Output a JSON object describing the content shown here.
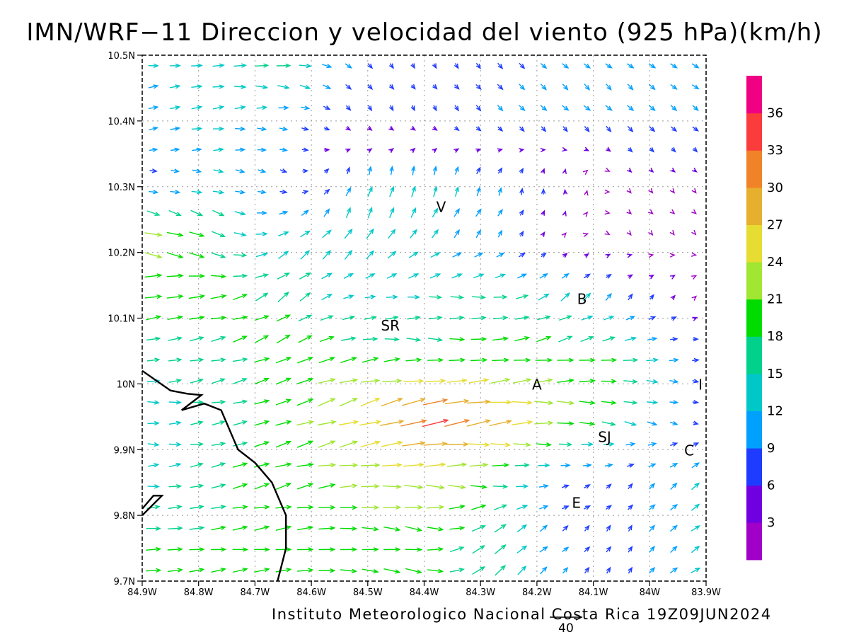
{
  "title": "IMN/WRF−11 Direccion y velocidad del viento (925 hPa)(km/h)",
  "footer": "Instituto Meteorologico Nacional Costa Rica  19Z09JUN2024",
  "map": {
    "lon_range": [
      -84.9,
      -83.9
    ],
    "lat_range": [
      9.7,
      10.5
    ],
    "x_tick_labels": [
      "84.9W",
      "84.8W",
      "84.7W",
      "84.6W",
      "84.5W",
      "84.4W",
      "84.3W",
      "84.2W",
      "84.1W",
      "84W",
      "83.9W"
    ],
    "y_tick_labels": [
      "9.7N",
      "9.8N",
      "9.9N",
      "10N",
      "10.1N",
      "10.2N",
      "10.3N",
      "10.4N",
      "10.5N"
    ],
    "grid": "dotted",
    "places": [
      {
        "label": "V",
        "lon": -84.37,
        "lat": 10.27
      },
      {
        "label": "B",
        "lon": -84.12,
        "lat": 10.13
      },
      {
        "label": "SR",
        "lon": -84.46,
        "lat": 10.09
      },
      {
        "label": "A",
        "lon": -84.2,
        "lat": 10.0
      },
      {
        "label": "I",
        "lon": -83.91,
        "lat": 10.0
      },
      {
        "label": "SJ",
        "lon": -84.08,
        "lat": 9.92
      },
      {
        "label": "C",
        "lon": -83.93,
        "lat": 9.9
      },
      {
        "label": "E",
        "lon": -84.13,
        "lat": 9.82
      }
    ],
    "coastline_lonlat": [
      [
        -84.9,
        10.02
      ],
      [
        -84.85,
        9.99
      ],
      [
        -84.82,
        9.985
      ],
      [
        -84.795,
        9.983
      ],
      [
        -84.83,
        9.96
      ],
      [
        -84.79,
        9.97
      ],
      [
        -84.76,
        9.96
      ],
      [
        -84.74,
        9.92
      ],
      [
        -84.73,
        9.9
      ],
      [
        -84.7,
        9.88
      ],
      [
        -84.67,
        9.85
      ],
      [
        -84.645,
        9.8
      ],
      [
        -84.645,
        9.75
      ],
      [
        -84.66,
        9.7
      ]
    ],
    "land_tip_lonlat": [
      [
        -84.9,
        9.81
      ],
      [
        -84.88,
        9.83
      ],
      [
        -84.865,
        9.83
      ],
      [
        -84.9,
        9.8
      ]
    ]
  },
  "colorbar": {
    "colors": [
      "#a000c8",
      "#7000e0",
      "#1e3cff",
      "#00a0ff",
      "#00c8c8",
      "#00d28c",
      "#00dc00",
      "#a0e632",
      "#e6dc32",
      "#e6af2d",
      "#f08228",
      "#fa3c3c",
      "#f00082"
    ],
    "labels": [
      "3",
      "6",
      "9",
      "12",
      "15",
      "18",
      "21",
      "24",
      "27",
      "30",
      "33",
      "36"
    ]
  },
  "reference_vector": {
    "label": "40"
  },
  "wind_field": {
    "description": "Sampled wind vectors: eastward (u) and northward (v) km/h components",
    "rows": [
      {
        "lat": 10.48,
        "lon": [
          -84.88,
          -84.76,
          -84.64,
          -84.52,
          -84.4,
          -84.28,
          -84.16,
          -84.04,
          -83.92
        ],
        "u": [
          12,
          14,
          17,
          6,
          3,
          6,
          7,
          7,
          8
        ],
        "v": [
          1,
          1,
          -2,
          -6,
          -5,
          -6,
          -6,
          -6,
          -5
        ]
      },
      {
        "lat": 10.4,
        "lon": [
          -84.88,
          -84.76,
          -84.64,
          -84.52,
          -84.4,
          -84.28,
          -84.16,
          -84.04,
          -83.92
        ],
        "u": [
          11,
          13,
          10,
          4,
          4,
          6,
          7,
          7,
          7
        ],
        "v": [
          3,
          2,
          -1,
          -6,
          -6,
          -7,
          -7,
          -7,
          -6
        ]
      },
      {
        "lat": 10.31,
        "lon": [
          -84.88,
          -84.76,
          -84.64,
          -84.52,
          -84.4,
          -84.28,
          -84.16,
          -84.04,
          -83.92
        ],
        "u": [
          8,
          12,
          7,
          3,
          2,
          4,
          -1,
          2,
          2
        ],
        "v": [
          -1,
          -2,
          -3,
          12,
          14,
          10,
          6,
          -2,
          -2
        ]
      },
      {
        "lat": 10.22,
        "lon": [
          -84.88,
          -84.76,
          -84.64,
          -84.52,
          -84.4,
          -84.28,
          -84.16,
          -84.04,
          -83.92
        ],
        "u": [
          22,
          16,
          12,
          8,
          9,
          6,
          2,
          2,
          1
        ],
        "v": [
          -6,
          -8,
          8,
          13,
          9,
          8,
          2,
          -2,
          -1
        ]
      },
      {
        "lat": 10.13,
        "lon": [
          -84.88,
          -84.76,
          -84.64,
          -84.52,
          -84.4,
          -84.28,
          -84.16,
          -84.04,
          -83.92
        ],
        "u": [
          20,
          19,
          14,
          12,
          15,
          17,
          12,
          6,
          2
        ],
        "v": [
          4,
          3,
          11,
          2,
          1,
          0,
          9,
          7,
          2
        ]
      },
      {
        "lat": 10.04,
        "lon": [
          -84.88,
          -84.76,
          -84.64,
          -84.52,
          -84.4,
          -84.28,
          -84.16,
          -84.04,
          -83.92
        ],
        "u": [
          15,
          17,
          18,
          20,
          18,
          20,
          20,
          18,
          8
        ],
        "v": [
          2,
          4,
          8,
          4,
          -2,
          2,
          3,
          1,
          0
        ]
      },
      {
        "lat": 9.95,
        "lon": [
          -84.88,
          -84.76,
          -84.64,
          -84.52,
          -84.4,
          -84.28,
          -84.16,
          -84.04,
          -83.92
        ],
        "u": [
          14,
          16,
          19,
          24,
          34,
          30,
          22,
          16,
          6
        ],
        "v": [
          -1,
          3,
          6,
          8,
          9,
          4,
          -2,
          -4,
          -2
        ]
      },
      {
        "lat": 9.86,
        "lon": [
          -84.88,
          -84.76,
          -84.64,
          -84.52,
          -84.4,
          -84.28,
          -84.16,
          -84.04,
          -83.92
        ],
        "u": [
          13,
          17,
          19,
          22,
          24,
          20,
          9,
          6,
          9
        ],
        "v": [
          1,
          5,
          6,
          1,
          -1,
          -2,
          1,
          5,
          8
        ]
      },
      {
        "lat": 9.77,
        "lon": [
          -84.88,
          -84.76,
          -84.64,
          -84.52,
          -84.4,
          -84.28,
          -84.16,
          -84.04,
          -83.92
        ],
        "u": [
          18,
          18,
          19,
          20,
          20,
          14,
          7,
          4,
          10
        ],
        "v": [
          1,
          2,
          2,
          -1,
          -3,
          12,
          6,
          7,
          7
        ]
      }
    ]
  }
}
